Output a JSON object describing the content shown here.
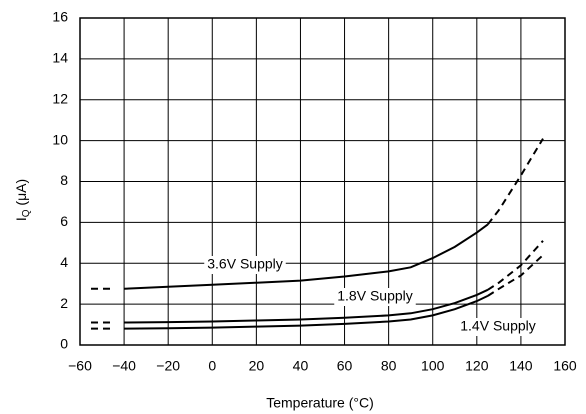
{
  "chart_data": {
    "type": "line",
    "x_label": "Temperature (°C)",
    "y_label": "I",
    "y_label_subscript": "Q",
    "y_label_unit": " (μA)",
    "x": [
      -55,
      -45,
      -40,
      -20,
      0,
      20,
      40,
      60,
      80,
      90,
      100,
      110,
      120,
      125,
      130,
      140,
      150
    ],
    "series": [
      {
        "name": "3.6V Supply",
        "color": "#000000",
        "line_style": "solid",
        "values": [
          null,
          null,
          2.75,
          2.85,
          2.95,
          3.05,
          3.15,
          3.35,
          3.6,
          3.8,
          4.25,
          4.8,
          5.5,
          5.9,
          null,
          null,
          null
        ]
      },
      {
        "color": "#000000",
        "line_style": "dashed",
        "values": [
          2.75,
          2.75,
          null,
          null,
          null,
          null,
          null,
          null,
          null,
          null,
          null,
          null,
          null,
          5.9,
          6.6,
          8.3,
          10.1
        ]
      },
      {
        "name": "1.8V Supply",
        "color": "#000000",
        "line_style": "solid",
        "values": [
          null,
          null,
          1.1,
          1.12,
          1.15,
          1.2,
          1.25,
          1.33,
          1.45,
          1.55,
          1.75,
          2.05,
          2.45,
          2.7,
          null,
          null,
          null
        ]
      },
      {
        "color": "#000000",
        "line_style": "dashed",
        "values": [
          1.1,
          1.1,
          null,
          null,
          null,
          null,
          null,
          null,
          null,
          null,
          null,
          null,
          null,
          2.7,
          3.05,
          3.9,
          5.1
        ]
      },
      {
        "name": "1.4V Supply",
        "color": "#000000",
        "line_style": "solid",
        "values": [
          null,
          null,
          0.8,
          0.82,
          0.85,
          0.9,
          0.95,
          1.03,
          1.15,
          1.25,
          1.45,
          1.75,
          2.15,
          2.4,
          null,
          null,
          null
        ]
      },
      {
        "color": "#000000",
        "line_style": "dashed",
        "values": [
          0.8,
          0.8,
          null,
          null,
          null,
          null,
          null,
          null,
          null,
          null,
          null,
          null,
          null,
          2.4,
          2.75,
          3.4,
          4.4
        ]
      }
    ],
    "xlim": [
      -60,
      160
    ],
    "xticks": [
      {
        "value": -60,
        "label": "−60"
      },
      {
        "value": -40,
        "label": "−40"
      },
      {
        "value": -20,
        "label": "−20"
      },
      0,
      20,
      40,
      60,
      80,
      100,
      120,
      140,
      160
    ],
    "ylim": [
      0,
      16
    ],
    "yticks": [
      0,
      2,
      4,
      6,
      8,
      10,
      12,
      14,
      16
    ],
    "grid": true
  }
}
